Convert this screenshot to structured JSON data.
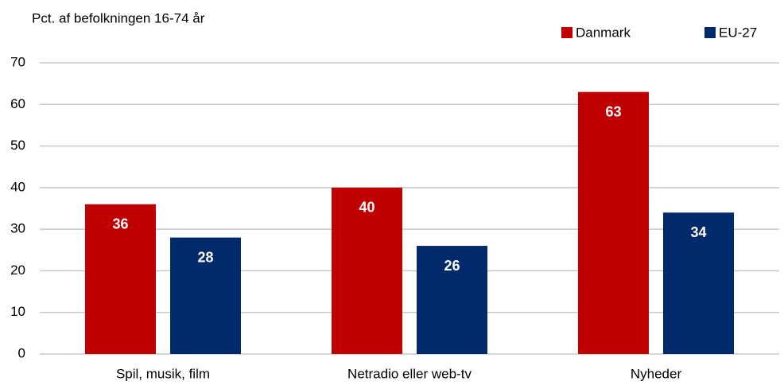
{
  "chart_data": {
    "type": "bar",
    "y_label": "Pct. af befolkningen 16-74 år",
    "categories": [
      "Spil, musik, film",
      "Netradio eller web-tv",
      "Nyheder"
    ],
    "series": [
      {
        "name": "Danmark",
        "color": "#c00000",
        "values": [
          36,
          40,
          63
        ]
      },
      {
        "name": "EU-27",
        "color": "#002a6c",
        "values": [
          28,
          26,
          34
        ]
      }
    ],
    "ylim": [
      0,
      70
    ],
    "yticks": [
      0,
      10,
      20,
      30,
      40,
      50,
      60,
      70
    ],
    "grid": true,
    "legend": "top-right"
  }
}
